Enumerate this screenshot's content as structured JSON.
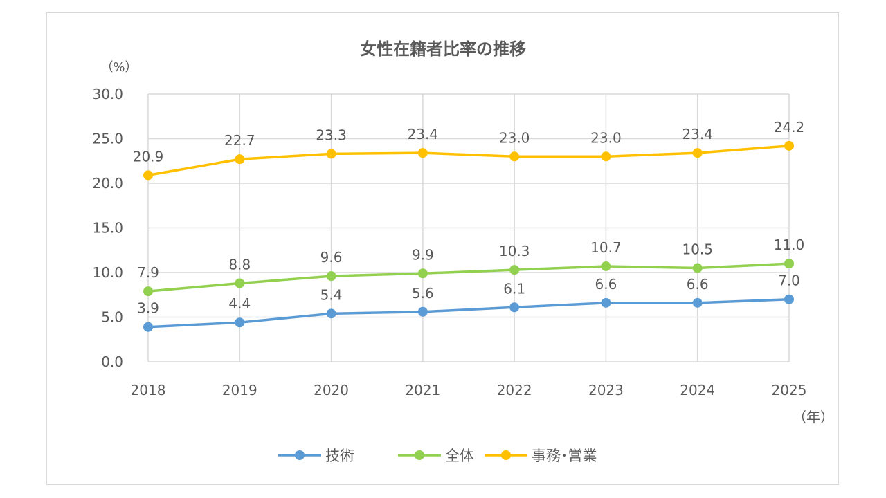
{
  "chart_data": {
    "type": "line",
    "title": "女性在籍者比率の推移",
    "ylabel": "（%）",
    "xlabel": "（年）",
    "ylim": [
      0,
      30
    ],
    "yticks": [
      "0.0",
      "5.0",
      "10.0",
      "15.0",
      "20.0",
      "25.0",
      "30.0"
    ],
    "categories": [
      "2018",
      "2019",
      "2020",
      "2021",
      "2022",
      "2023",
      "2024",
      "2025"
    ],
    "grid": true,
    "legend_position": "bottom",
    "series": [
      {
        "name": "技術",
        "color": "#5B9BD5",
        "values": [
          3.9,
          4.4,
          5.4,
          5.6,
          6.1,
          6.6,
          6.6,
          7.0
        ],
        "labels": [
          "3.9",
          "4.4",
          "5.4",
          "5.6",
          "6.1",
          "6.6",
          "6.6",
          "7.0"
        ]
      },
      {
        "name": "全体",
        "color": "#92D050",
        "values": [
          7.9,
          8.8,
          9.6,
          9.9,
          10.3,
          10.7,
          10.5,
          11.0
        ],
        "labels": [
          "7.9",
          "8.8",
          "9.6",
          "9.9",
          "10.3",
          "10.7",
          "10.5",
          "11.0"
        ]
      },
      {
        "name": "事務･営業",
        "color": "#FFC000",
        "values": [
          20.9,
          22.7,
          23.3,
          23.4,
          23.0,
          23.0,
          23.4,
          24.2
        ],
        "labels": [
          "20.9",
          "22.7",
          "23.3",
          "23.4",
          "23.0",
          "23.0",
          "23.4",
          "24.2"
        ]
      }
    ]
  }
}
